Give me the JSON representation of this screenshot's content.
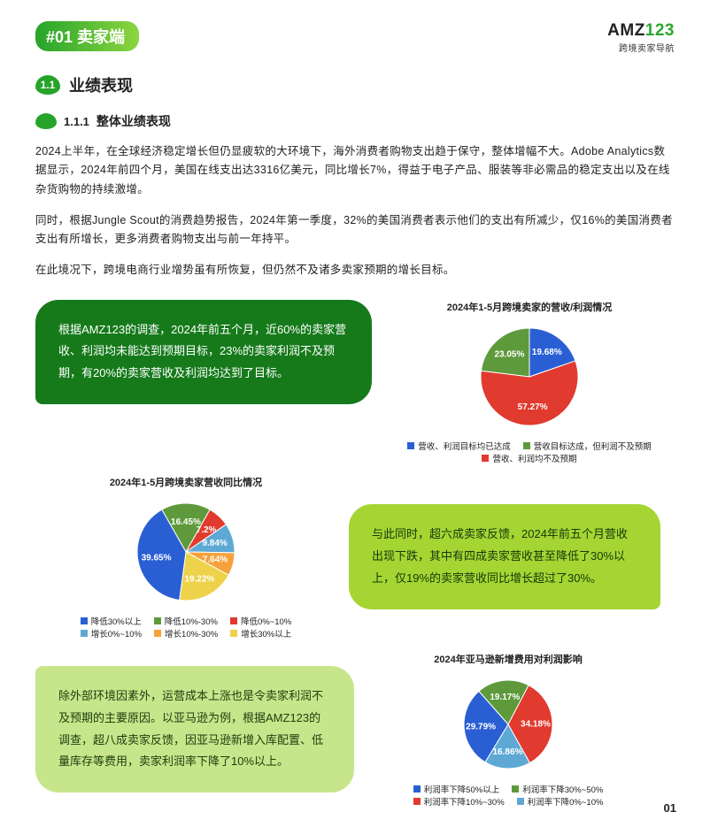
{
  "brand": {
    "name_prefix": "AMZ",
    "name_suffix": "123",
    "subtitle": "跨境卖家导航"
  },
  "section": {
    "tag": "#01  卖家端"
  },
  "h11": {
    "num": "1.1",
    "title": "业绩表现"
  },
  "h111": {
    "num": "1.1.1",
    "title": "整体业绩表现"
  },
  "paras": {
    "p1": "2024上半年，在全球经济稳定增长但仍显疲软的大环境下，海外消费者购物支出趋于保守，整体增幅不大。Adobe Analytics数据显示，2024年前四个月，美国在线支出达3316亿美元，同比增长7%，得益于电子产品、服装等非必需品的稳定支出以及在线杂货购物的持续激增。",
    "p2": "同时，根据Jungle Scout的消费趋势报告，2024年第一季度，32%的美国消费者表示他们的支出有所减少，仅16%的美国消费者支出有所增长，更多消费者购物支出与前一年持平。",
    "p3": "在此境况下，跨境电商行业增势虽有所恢复，但仍然不及诸多卖家预期的增长目标。"
  },
  "callouts": {
    "c1": "根据AMZ123的调查，2024年前五个月，近60%的卖家营收、利润均未能达到预期目标，23%的卖家利润不及预期，有20%的卖家营收及利润均达到了目标。",
    "c2": "与此同时，超六成卖家反馈，2024年前五个月营收出现下跌，其中有四成卖家营收甚至降低了30%以上，仅19%的卖家营收同比增长超过了30%。",
    "c3": "除外部环境因素外，运营成本上涨也是令卖家利润不及预期的主要原因。以亚马逊为例，根据AMZ123的调查，超八成卖家反馈，因亚马逊新增入库配置、低量库存等费用，卖家利润率下降了10%以上。"
  },
  "chart1": {
    "type": "pie",
    "title": "2024年1-5月跨境卖家的营收/利润情况",
    "slices": [
      {
        "label": "57.27%",
        "value": 57.27,
        "color": "#e13a2e",
        "legend": "营收、利润均不及预期"
      },
      {
        "label": "19.68%",
        "value": 19.68,
        "color": "#2a5fd4",
        "legend": "营收、利润目标均已达成"
      },
      {
        "label": "23.05%",
        "value": 23.05,
        "color": "#5e9a3c",
        "legend": "营收目标达成，但利润不及预期"
      }
    ],
    "legend_order": [
      {
        "color": "#2a5fd4",
        "text": "营收、利润目标均已达成"
      },
      {
        "color": "#5e9a3c",
        "text": "营收目标达成，但利润不及预期"
      },
      {
        "color": "#e13a2e",
        "text": "营收、利润均不及预期"
      }
    ]
  },
  "chart2": {
    "type": "pie",
    "title": "2024年1-5月跨境卖家营收同比情况",
    "slices": [
      {
        "label": "39.65%",
        "value": 39.65,
        "color": "#2a5fd4"
      },
      {
        "label": "16.45%",
        "value": 16.45,
        "color": "#5e9a3c"
      },
      {
        "label": "7.2%",
        "value": 7.2,
        "color": "#e13a2e"
      },
      {
        "label": "9.84%",
        "value": 9.84,
        "color": "#5da9d4"
      },
      {
        "label": "7.64%",
        "value": 7.64,
        "color": "#f6a23a"
      },
      {
        "label": "19.22%",
        "value": 19.22,
        "color": "#edd24a"
      }
    ],
    "legend_order": [
      {
        "color": "#2a5fd4",
        "text": "降低30%以上"
      },
      {
        "color": "#5e9a3c",
        "text": "降低10%-30%"
      },
      {
        "color": "#e13a2e",
        "text": "降低0%~10%"
      },
      {
        "color": "#5da9d4",
        "text": "增长0%~10%"
      },
      {
        "color": "#f6a23a",
        "text": "增长10%-30%"
      },
      {
        "color": "#edd24a",
        "text": "增长30%以上"
      }
    ]
  },
  "chart3": {
    "type": "pie",
    "title": "2024年亚马逊新增费用对利润影响",
    "slices": [
      {
        "label": "34.18%",
        "value": 34.18,
        "color": "#e13a2e"
      },
      {
        "label": "16.86%",
        "value": 16.86,
        "color": "#5da9d4"
      },
      {
        "label": "29.79%",
        "value": 29.79,
        "color": "#2a5fd4"
      },
      {
        "label": "19.17%",
        "value": 19.17,
        "color": "#5e9a3c"
      }
    ],
    "legend_order": [
      {
        "color": "#2a5fd4",
        "text": "利润率下降50%以上"
      },
      {
        "color": "#5e9a3c",
        "text": "利润率下降30%~50%"
      },
      {
        "color": "#e13a2e",
        "text": "利润率下降10%~30%"
      },
      {
        "color": "#5da9d4",
        "text": "利润率下降0%~10%"
      }
    ]
  },
  "page_num": "01"
}
